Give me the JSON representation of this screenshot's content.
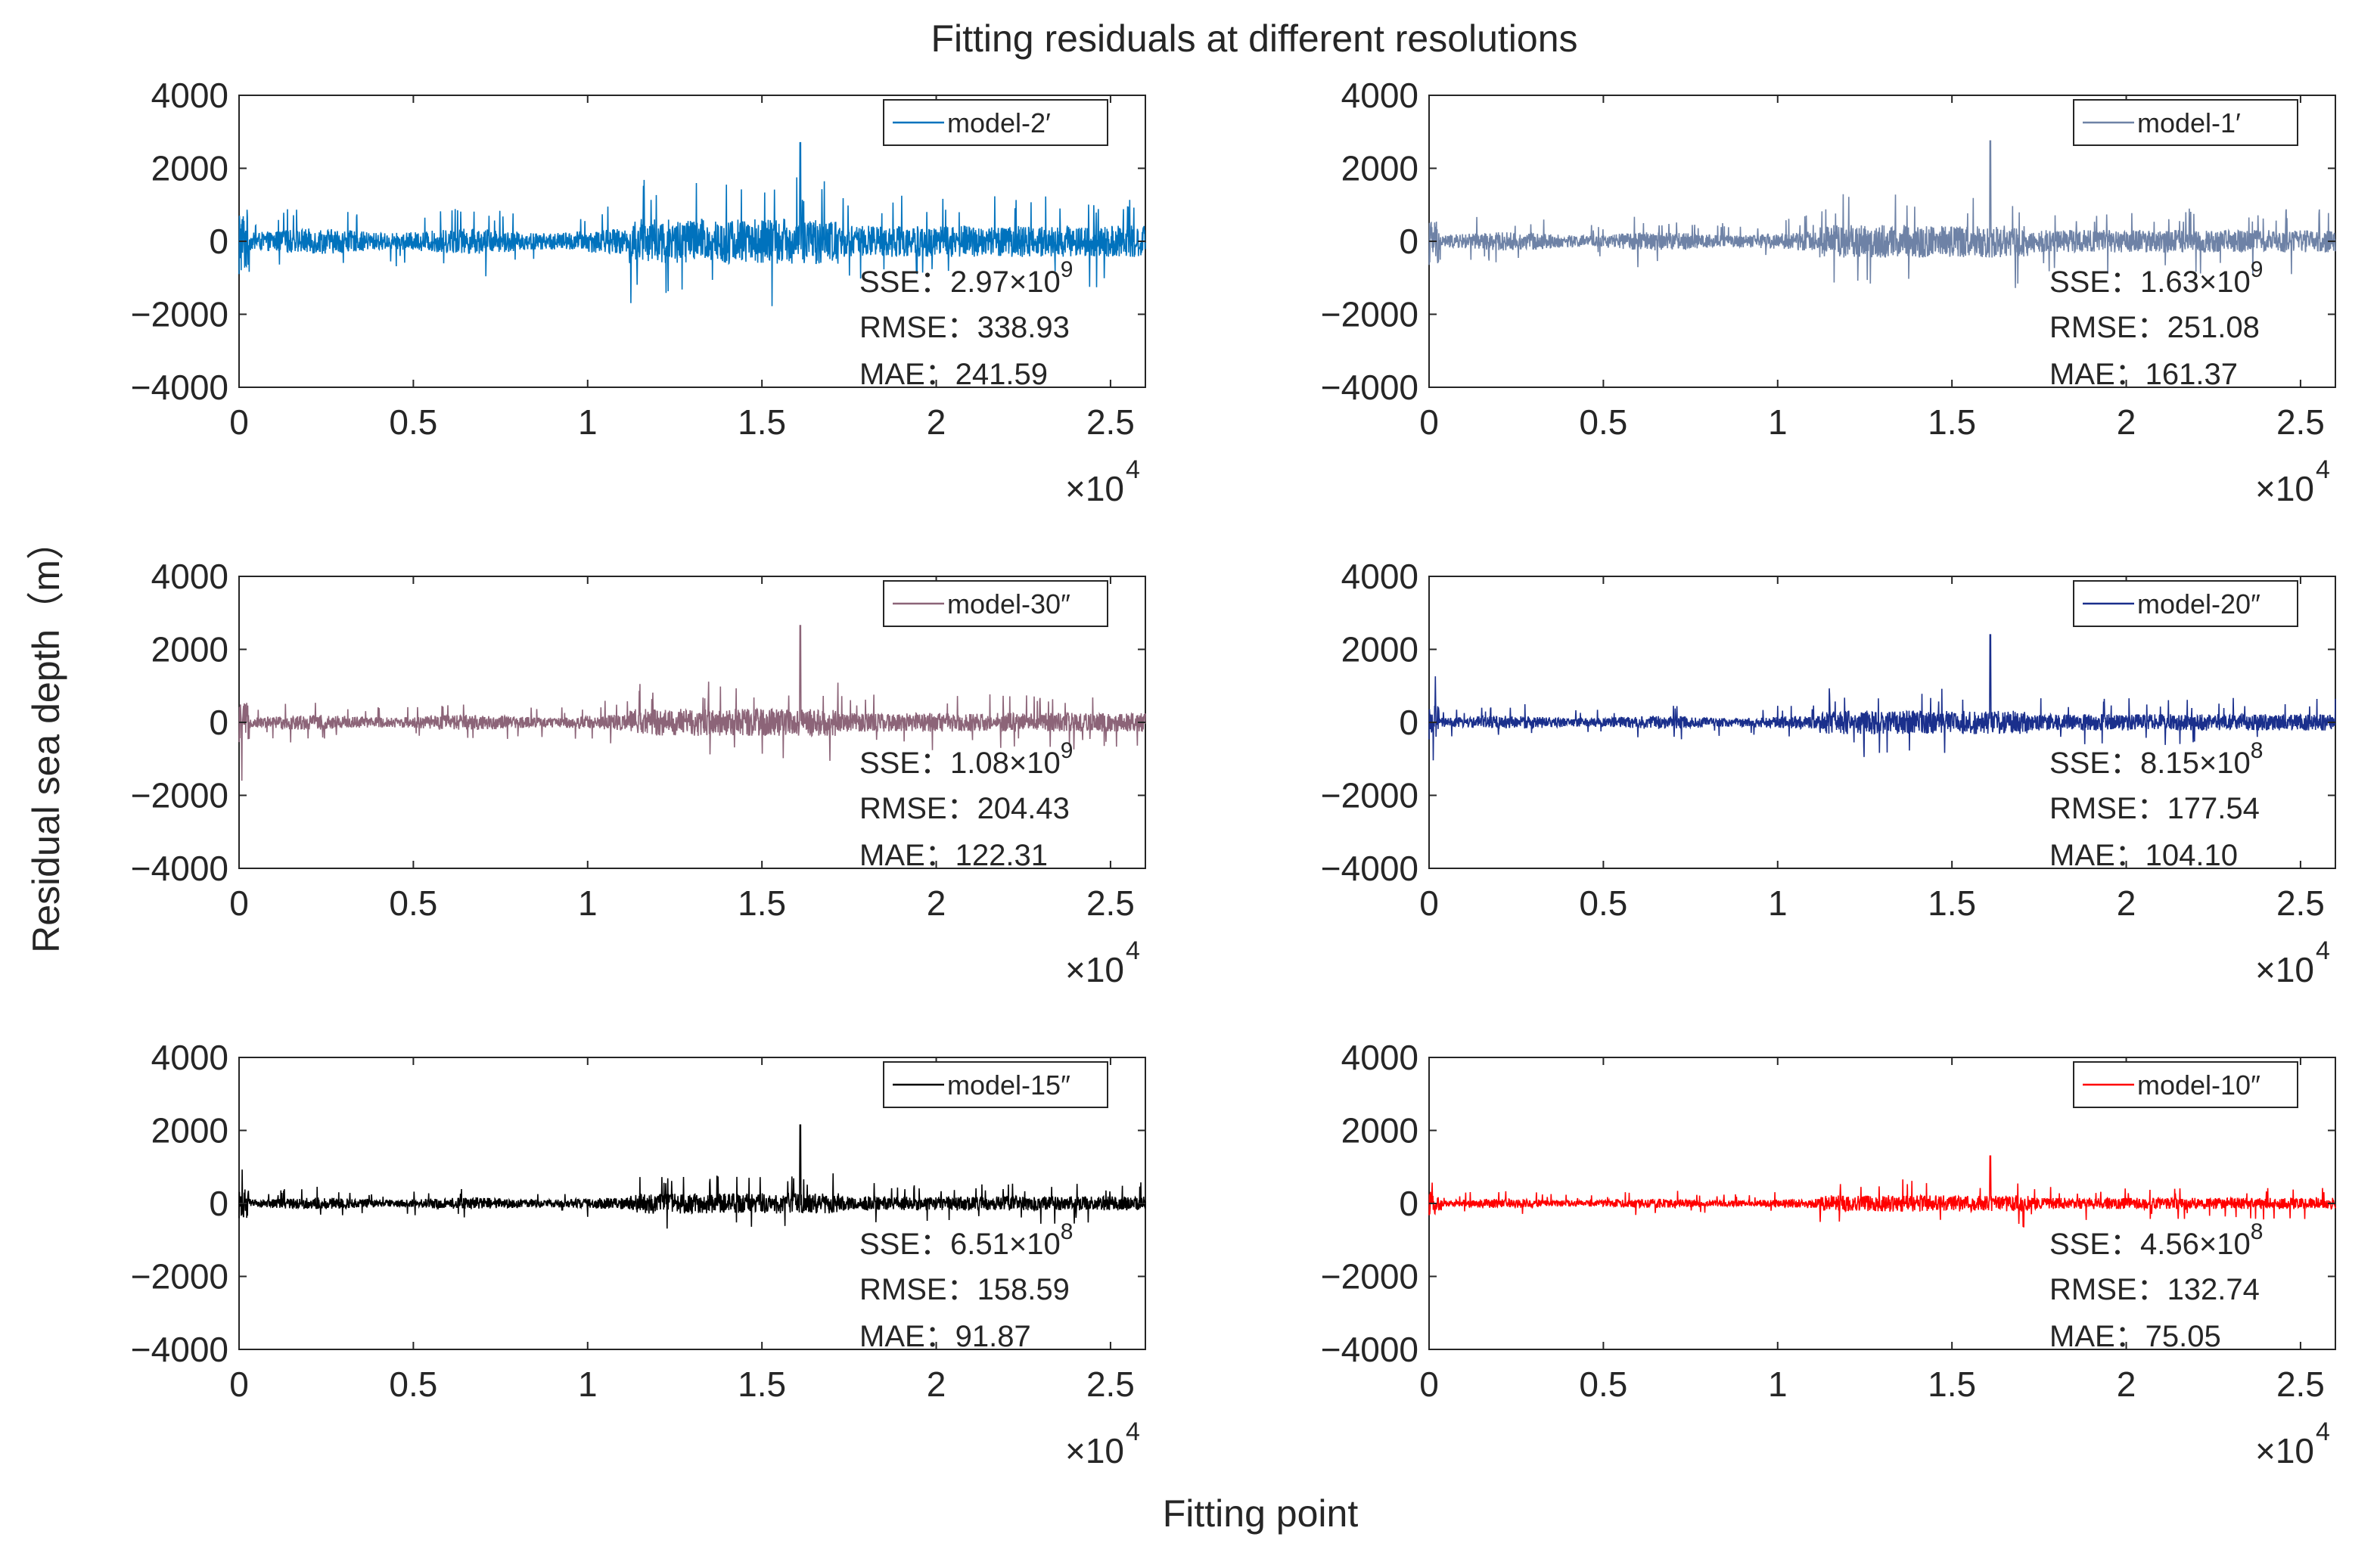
{
  "figure": {
    "title": "Fitting residuals at different resolutions",
    "xlabel": "Fitting point",
    "ylabel": "Residual sea depth（m）"
  },
  "chart_data": [
    {
      "type": "line",
      "legend": "model-2′",
      "color": "#0072bd",
      "amplitude": 1.0,
      "peak": 2700,
      "stats": {
        "sse_label": "SSE：",
        "sse_mantissa": "2.97×10",
        "sse_exponent": "9",
        "rmse": "RMSE：338.93",
        "mae": "MAE：241.59"
      },
      "ylim": [
        -4000,
        4000
      ],
      "yticks": [
        "4000",
        "2000",
        "0",
        "−2000",
        "−4000"
      ],
      "xlim": [
        0,
        26000
      ],
      "xticks": [
        "0",
        "0.5",
        "1",
        "1.5",
        "2",
        "2.5"
      ],
      "x_multiplier": "×10",
      "x_multiplier_exp": "4",
      "grid": false,
      "legend_position": "top-right"
    },
    {
      "type": "line",
      "legend": "model-1′",
      "color": "#6e82a6",
      "amplitude": 0.72,
      "peak": 2750,
      "stats": {
        "sse_label": "SSE：",
        "sse_mantissa": "1.63×10",
        "sse_exponent": "9",
        "rmse": "RMSE：251.08",
        "mae": "MAE：161.37"
      },
      "ylim": [
        -4000,
        4000
      ],
      "yticks": [
        "4000",
        "2000",
        "0",
        "−2000",
        "−4000"
      ],
      "xlim": [
        0,
        26000
      ],
      "xticks": [
        "0",
        "0.5",
        "1",
        "1.5",
        "2",
        "2.5"
      ],
      "x_multiplier": "×10",
      "x_multiplier_exp": "4",
      "grid": false,
      "legend_position": "top-right"
    },
    {
      "type": "line",
      "legend": "model-30″",
      "color": "#8c6478",
      "amplitude": 0.6,
      "peak": 2650,
      "stats": {
        "sse_label": "SSE：",
        "sse_mantissa": "1.08×10",
        "sse_exponent": "9",
        "rmse": "RMSE：204.43",
        "mae": "MAE：122.31"
      },
      "ylim": [
        -4000,
        4000
      ],
      "yticks": [
        "4000",
        "2000",
        "0",
        "−2000",
        "−4000"
      ],
      "xlim": [
        0,
        26000
      ],
      "xticks": [
        "0",
        "0.5",
        "1",
        "1.5",
        "2",
        "2.5"
      ],
      "x_multiplier": "×10",
      "x_multiplier_exp": "4",
      "grid": false,
      "legend_position": "top-right"
    },
    {
      "type": "line",
      "legend": "model-20″",
      "color": "#1a2f8c",
      "amplitude": 0.52,
      "peak": 2400,
      "stats": {
        "sse_label": "SSE：",
        "sse_mantissa": "8.15×10",
        "sse_exponent": "8",
        "rmse": "RMSE：177.54",
        "mae": "MAE：104.10"
      },
      "ylim": [
        -4000,
        4000
      ],
      "yticks": [
        "4000",
        "2000",
        "0",
        "−2000",
        "−4000"
      ],
      "xlim": [
        0,
        26000
      ],
      "xticks": [
        "0",
        "0.5",
        "1",
        "1.5",
        "2",
        "2.5"
      ],
      "x_multiplier": "×10",
      "x_multiplier_exp": "4",
      "grid": false,
      "legend_position": "top-right"
    },
    {
      "type": "line",
      "legend": "model-15″",
      "color": "#000000",
      "amplitude": 0.45,
      "peak": 2150,
      "stats": {
        "sse_label": "SSE：",
        "sse_mantissa": "6.51×10",
        "sse_exponent": "8",
        "rmse": "RMSE：158.59",
        "mae": "MAE：91.87"
      },
      "ylim": [
        -4000,
        4000
      ],
      "yticks": [
        "4000",
        "2000",
        "0",
        "−2000",
        "−4000"
      ],
      "xlim": [
        0,
        26000
      ],
      "xticks": [
        "0",
        "0.5",
        "1",
        "1.5",
        "2",
        "2.5"
      ],
      "x_multiplier": "×10",
      "x_multiplier_exp": "4",
      "grid": false,
      "legend_position": "top-right"
    },
    {
      "type": "line",
      "legend": "model-10″",
      "color": "#ff0000",
      "amplitude": 0.36,
      "peak": 1300,
      "stats": {
        "sse_label": "SSE：",
        "sse_mantissa": "4.56×10",
        "sse_exponent": "8",
        "rmse": "RMSE：132.74",
        "mae": "MAE：75.05"
      },
      "ylim": [
        -4000,
        4000
      ],
      "yticks": [
        "4000",
        "2000",
        "0",
        "−2000",
        "−4000"
      ],
      "xlim": [
        0,
        26000
      ],
      "xticks": [
        "0",
        "0.5",
        "1",
        "1.5",
        "2",
        "2.5"
      ],
      "x_multiplier": "×10",
      "x_multiplier_exp": "4",
      "grid": false,
      "legend_position": "top-right"
    }
  ]
}
